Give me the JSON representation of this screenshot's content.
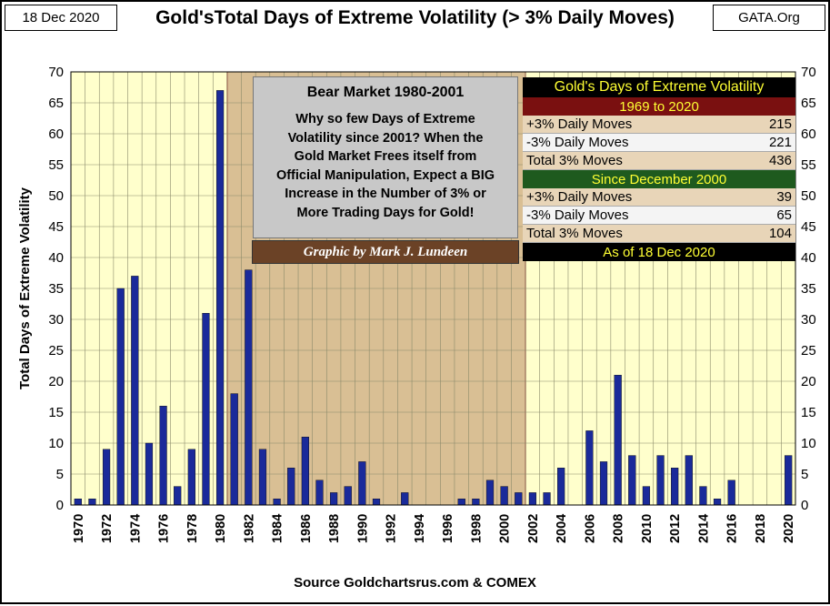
{
  "header": {
    "date_label": "18 Dec 2020",
    "source_label": "GATA.Org",
    "title": "Gold'sTotal Days of Extreme Volatility (> 3% Daily Moves)"
  },
  "footer": {
    "source": "Source Goldchartsrus.com & COMEX"
  },
  "annotation": {
    "bear_title": "Bear Market  1980-2001",
    "bear_lines": [
      "Why so few Days of Extreme",
      "Volatility since 2001?  When the",
      "Gold Market Frees itself from",
      "Official Manipulation, Expect a BIG",
      "Increase in the Number of 3% or",
      "More Trading Days for Gold!"
    ],
    "credit": "Graphic by Mark J. Lundeen"
  },
  "stats_table": {
    "title": "Gold's Days of Extreme Volatility",
    "period1": "1969 to 2020",
    "period1_rows": [
      {
        "label": "+3% Daily Moves",
        "value": "215"
      },
      {
        "label": "-3% Daily Moves",
        "value": "221"
      },
      {
        "label": "Total 3% Moves",
        "value": "436"
      }
    ],
    "period2": "Since December 2000",
    "period2_rows": [
      {
        "label": "+3% Daily Moves",
        "value": "39"
      },
      {
        "label": "-3% Daily Moves",
        "value": "65"
      },
      {
        "label": "Total 3% Moves",
        "value": "104"
      }
    ],
    "as_of": "As of 18 Dec 2020"
  },
  "colors": {
    "bar_fill": "#1a2a9a",
    "plot_bg": "#ffffcc",
    "bear_bg": "#d9bf94",
    "grid": "#8a8a6a",
    "bear_border": "#8b1a1a",
    "period1_bg": "#7a1010",
    "period2_bg": "#1e5a1e",
    "as_of_bg": "#000000",
    "title_yellow": "#ffff33"
  },
  "chart_data": {
    "type": "bar",
    "ylabel": "Total Days of Extreme Volatility",
    "xlabel": "",
    "ylim": [
      0,
      70
    ],
    "yticks": [
      0,
      5,
      10,
      15,
      20,
      25,
      30,
      35,
      40,
      45,
      50,
      55,
      60,
      65,
      70
    ],
    "xtick_labels": [
      "1970",
      "1972",
      "1974",
      "1976",
      "1978",
      "1980",
      "1982",
      "1984",
      "1986",
      "1988",
      "1990",
      "1992",
      "1994",
      "1996",
      "1998",
      "2000",
      "2002",
      "2004",
      "2006",
      "2008",
      "2010",
      "2012",
      "2014",
      "2016",
      "2018",
      "2020"
    ],
    "categories": [
      1970,
      1971,
      1972,
      1973,
      1974,
      1975,
      1976,
      1977,
      1978,
      1979,
      1980,
      1981,
      1982,
      1983,
      1984,
      1985,
      1986,
      1987,
      1988,
      1989,
      1990,
      1991,
      1992,
      1993,
      1994,
      1995,
      1996,
      1997,
      1998,
      1999,
      2000,
      2001,
      2002,
      2003,
      2004,
      2005,
      2006,
      2007,
      2008,
      2009,
      2010,
      2011,
      2012,
      2013,
      2014,
      2015,
      2016,
      2017,
      2018,
      2019,
      2020
    ],
    "values": [
      1,
      1,
      9,
      35,
      37,
      10,
      16,
      3,
      9,
      31,
      67,
      18,
      38,
      9,
      1,
      6,
      11,
      4,
      2,
      3,
      7,
      1,
      0,
      2,
      0,
      0,
      0,
      1,
      1,
      4,
      3,
      2,
      2,
      2,
      6,
      0,
      12,
      7,
      21,
      8,
      3,
      8,
      6,
      8,
      3,
      1,
      4,
      0,
      0,
      0,
      8
    ],
    "shaded_range": [
      1981,
      2001
    ],
    "grid": true
  }
}
